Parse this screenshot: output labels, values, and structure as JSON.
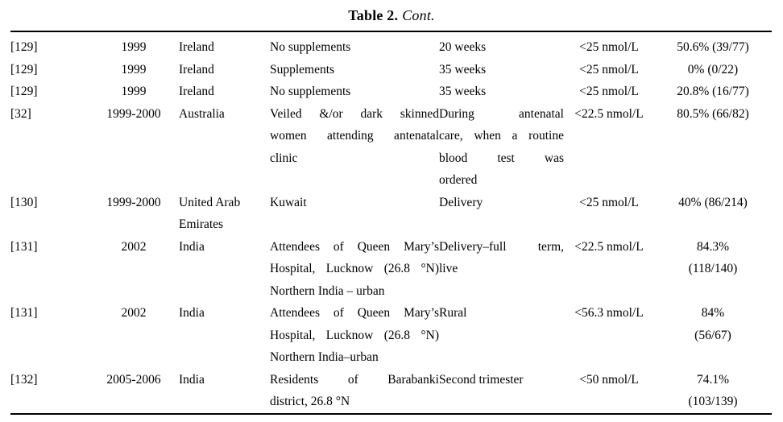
{
  "page": {
    "title_bold": "Table 2.",
    "title_italic": "Cont."
  },
  "table": {
    "column_keys": [
      "ref",
      "year",
      "country",
      "population",
      "timing",
      "threshold",
      "prevalence"
    ],
    "justified_columns": [
      "population",
      "timing"
    ],
    "rows": [
      {
        "ref": "[129]",
        "year": "1999",
        "country": "Ireland",
        "population": "No supplements",
        "timing": "20 weeks",
        "threshold": "<25 nmol/L",
        "prevalence": "50.6% (39/77)"
      },
      {
        "ref": "[129]",
        "year": "1999",
        "country": "Ireland",
        "population": "Supplements",
        "timing": "35 weeks",
        "threshold": "<25 nmol/L",
        "prevalence": "0% (0/22)"
      },
      {
        "ref": "[129]",
        "year": "1999",
        "country": "Ireland",
        "population": "No supplements",
        "timing": "35 weeks",
        "threshold": "<25 nmol/L",
        "prevalence": "20.8% (16/77)"
      },
      {
        "ref": "[32]",
        "year": "1999-2000",
        "country": "Australia",
        "population": [
          "Veiled &/or dark skinned",
          "women attending antenatal",
          "clinic"
        ],
        "timing": [
          "During antenatal",
          "care, when a routine",
          "blood test was",
          "ordered"
        ],
        "threshold": "<22.5 nmol/L",
        "prevalence": "80.5% (66/82)"
      },
      {
        "ref": "[130]",
        "year": "1999-2000",
        "country": [
          "United Arab",
          "Emirates"
        ],
        "population": "Kuwait",
        "timing": "Delivery",
        "threshold": "<25 nmol/L",
        "prevalence": "40% (86/214)"
      },
      {
        "ref": "[131]",
        "year": "2002",
        "country": "India",
        "population": [
          "Attendees of Queen Mary’s",
          "Hospital, Lucknow (26.8 °N)",
          "Northern India – urban"
        ],
        "timing": [
          "Delivery–full term,",
          "live"
        ],
        "threshold": "<22.5 nmol/L",
        "prevalence": [
          "84.3%",
          "(118/140)"
        ]
      },
      {
        "ref": "[131]",
        "year": "2002",
        "country": "India",
        "population": [
          "Attendees of Queen Mary’s",
          "Hospital, Lucknow (26.8 °N)",
          "Northern India–urban"
        ],
        "timing": "Rural",
        "threshold": "<56.3 nmol/L",
        "prevalence": [
          "84%",
          "(56/67)"
        ]
      },
      {
        "ref": "[132]",
        "year": "2005-2006",
        "country": "India",
        "population": [
          "Residents of Barabanki",
          "district, 26.8 °N"
        ],
        "timing": "Second trimester",
        "threshold": "<50 nmol/L",
        "prevalence": [
          "74.1%",
          "(103/139)"
        ]
      }
    ]
  }
}
